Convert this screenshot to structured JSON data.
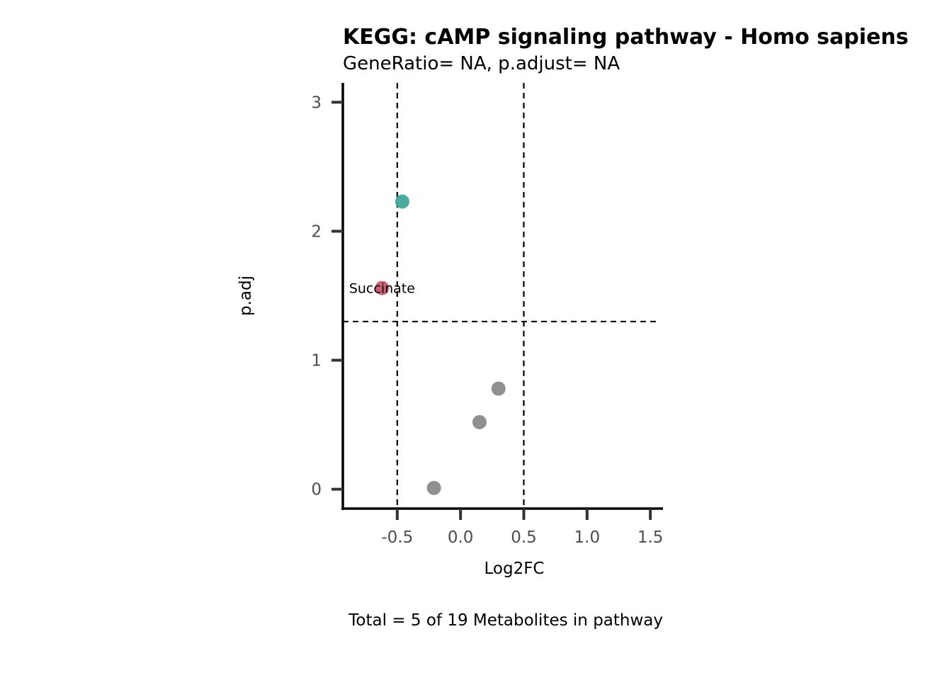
{
  "chart_data": {
    "type": "scatter",
    "title": "KEGG: cAMP signaling pathway - Homo sapiens",
    "subtitle": "GeneRatio= NA, p.adjust= NA",
    "xlabel": "Log2FC",
    "ylabel": "p.adj",
    "caption": "Total = 5 of 19 Metabolites in pathway",
    "xlim": [
      -0.93,
      1.6
    ],
    "ylim": [
      -0.15,
      3.15
    ],
    "x_ticks": [
      -0.5,
      0.0,
      0.5,
      1.0,
      1.5
    ],
    "x_tick_labels": [
      "-0.5",
      "0.0",
      "0.5",
      "1.0",
      "1.5"
    ],
    "y_ticks": [
      0,
      1,
      2,
      3
    ],
    "y_tick_labels": [
      "0",
      "1",
      "2",
      "3"
    ],
    "grid": false,
    "threshold_lines": {
      "vertical": [
        -0.5,
        0.5
      ],
      "horizontal": [
        1.3
      ]
    },
    "points": [
      {
        "x": -0.46,
        "y": 2.23,
        "color": "#3fa89a",
        "label": ""
      },
      {
        "x": -0.62,
        "y": 1.56,
        "color": "#c9596e",
        "label": "Succinate"
      },
      {
        "x": 0.3,
        "y": 0.78,
        "color": "#8a8a8a",
        "label": ""
      },
      {
        "x": 0.15,
        "y": 0.52,
        "color": "#8a8a8a",
        "label": ""
      },
      {
        "x": -0.21,
        "y": 0.01,
        "color": "#8a8a8a",
        "label": ""
      }
    ]
  }
}
